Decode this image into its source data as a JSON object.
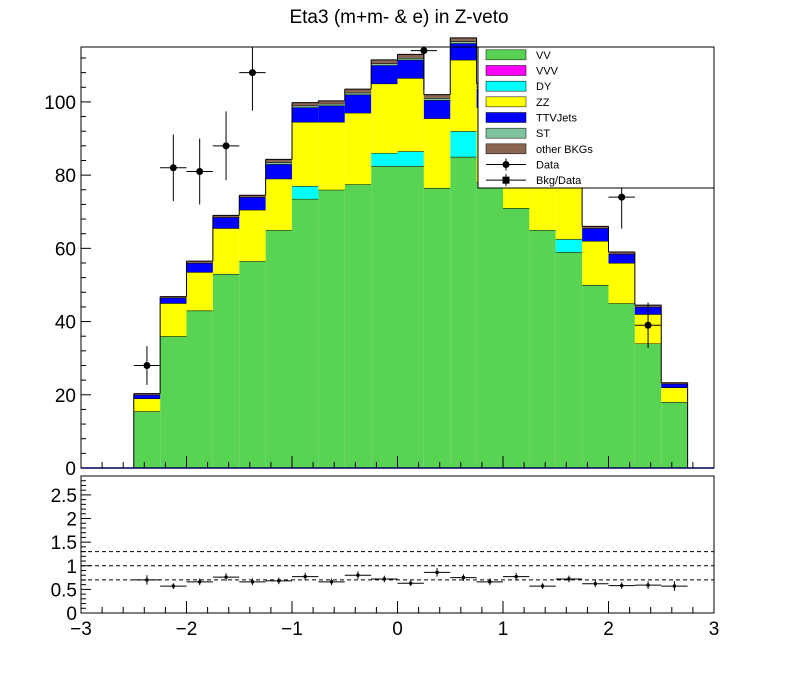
{
  "title": "Eta3 (m+m- & e) in Z-veto",
  "colors": {
    "VV": "#59d354",
    "VVV": "#ff00ff",
    "DY": "#00ffff",
    "ZZ": "#ffff00",
    "TTVJets": "#0000ff",
    "ST": "#7ec49c",
    "other BKGs": "#8b6655",
    "outline": "#000000",
    "axis": "#000000"
  },
  "legend": [
    {
      "label": "VV",
      "style": "fill",
      "color": "#59d354"
    },
    {
      "label": "VVV",
      "style": "fill",
      "color": "#ff00ff"
    },
    {
      "label": "DY",
      "style": "fill",
      "color": "#00ffff"
    },
    {
      "label": "ZZ",
      "style": "fill",
      "color": "#ffff00"
    },
    {
      "label": "TTVJets",
      "style": "fill",
      "color": "#0000ff"
    },
    {
      "label": "ST",
      "style": "fill",
      "color": "#7ec49c"
    },
    {
      "label": "other BKGs",
      "style": "fill",
      "color": "#8b6655"
    },
    {
      "label": "Data",
      "style": "marker-circle",
      "color": "#000000"
    },
    {
      "label": "Bkg/Data",
      "style": "marker-square",
      "color": "#000000"
    }
  ],
  "chart_data": [
    {
      "type": "bar",
      "subtype": "stacked-histogram",
      "title": "Eta3 (m+m- & e) in Z-veto",
      "xlim": [
        -3,
        3
      ],
      "ylim": [
        0,
        115
      ],
      "bin_edges": [
        -3.0,
        -2.75,
        -2.5,
        -2.25,
        -2.0,
        -1.75,
        -1.5,
        -1.25,
        -1.0,
        -0.75,
        -0.5,
        -0.25,
        0.0,
        0.25,
        0.5,
        0.75,
        1.0,
        1.25,
        1.5,
        1.75,
        2.0,
        2.25,
        2.5,
        2.75,
        3.0
      ],
      "yticks": [
        0,
        20,
        40,
        60,
        80,
        100
      ],
      "xticks": [
        -3,
        -2,
        -1,
        0,
        1,
        2,
        3
      ],
      "series": [
        {
          "name": "VV",
          "values": [
            0,
            0,
            15.5,
            36,
            43,
            53,
            56.5,
            65,
            73.5,
            76,
            77.5,
            82.5,
            82.5,
            76.5,
            85,
            78,
            71,
            65,
            59,
            50,
            45,
            34,
            18,
            0
          ]
        },
        {
          "name": "DY",
          "values": [
            0,
            0,
            0,
            0,
            0,
            0,
            0,
            0,
            3.5,
            0,
            0,
            3.5,
            4,
            0,
            7,
            0,
            0,
            0,
            3.5,
            0,
            0,
            0,
            0,
            0
          ]
        },
        {
          "name": "ZZ",
          "values": [
            0,
            0,
            3.5,
            9,
            10.5,
            12.5,
            14,
            14,
            17.5,
            18.5,
            19.5,
            19,
            20,
            19,
            19.5,
            20.5,
            20.5,
            18.5,
            14,
            12,
            11,
            8,
            4,
            0
          ]
        },
        {
          "name": "TTVJets",
          "values": [
            0,
            0,
            1,
            1.5,
            2.5,
            3,
            3.5,
            4,
            4,
            4.5,
            5,
            5,
            5,
            5,
            4.5,
            5,
            5,
            4.5,
            3.5,
            3.5,
            2.5,
            2,
            1,
            0
          ]
        },
        {
          "name": "ST",
          "values": [
            0,
            0,
            0,
            0,
            0,
            0,
            0,
            0.5,
            0.5,
            0.5,
            0.5,
            0.5,
            0.5,
            0.5,
            0.5,
            0.5,
            0.5,
            0.5,
            0.5,
            0,
            0,
            0,
            0,
            0
          ]
        },
        {
          "name": "other BKGs",
          "values": [
            0,
            0,
            0.3,
            0.3,
            0.5,
            0.5,
            0.5,
            0.8,
            0.8,
            0.8,
            1,
            1,
            1,
            1,
            1,
            1,
            0.8,
            0.8,
            0.8,
            0.5,
            0.5,
            0.5,
            0.3,
            0
          ]
        }
      ],
      "data_points": [
        {
          "x": -2.375,
          "y": 28,
          "err": 5.3
        },
        {
          "x": -2.125,
          "y": 82,
          "err": 9.1
        },
        {
          "x": -1.875,
          "y": 81,
          "err": 9
        },
        {
          "x": -1.625,
          "y": 88,
          "err": 9.4
        },
        {
          "x": -1.375,
          "y": 108,
          "err": 10.4
        },
        {
          "x": 0.25,
          "y": 114,
          "err": 10.7
        },
        {
          "x": 2.125,
          "y": 74,
          "err": 8.6
        },
        {
          "x": 2.375,
          "y": 39,
          "err": 6.2
        }
      ]
    },
    {
      "type": "scatter",
      "subtype": "ratio-with-errors",
      "name": "Bkg/Data",
      "xlim": [
        -3,
        3
      ],
      "ylim": [
        0,
        2.9
      ],
      "yticks": [
        0,
        0.5,
        1,
        1.5,
        2,
        2.5
      ],
      "ytick_labels": [
        "0",
        "0.5",
        "1",
        "1.5",
        "2",
        "2.5"
      ],
      "xticks": [
        -3,
        -2,
        -1,
        0,
        1,
        2,
        3
      ],
      "xtick_labels": [
        "−3",
        "−2",
        "−1",
        "0",
        "1",
        "2",
        "3"
      ],
      "reference_lines": [
        0.7,
        1.0,
        1.3
      ],
      "points": [
        {
          "x": -2.375,
          "y": 0.7,
          "err": 0.1
        },
        {
          "x": -2.125,
          "y": 0.57,
          "err": 0.06
        },
        {
          "x": -1.875,
          "y": 0.66,
          "err": 0.07
        },
        {
          "x": -1.625,
          "y": 0.76,
          "err": 0.08
        },
        {
          "x": -1.375,
          "y": 0.66,
          "err": 0.07
        },
        {
          "x": -1.125,
          "y": 0.68,
          "err": 0.07
        },
        {
          "x": -0.875,
          "y": 0.77,
          "err": 0.08
        },
        {
          "x": -0.625,
          "y": 0.66,
          "err": 0.07
        },
        {
          "x": -0.375,
          "y": 0.8,
          "err": 0.08
        },
        {
          "x": -0.125,
          "y": 0.72,
          "err": 0.07
        },
        {
          "x": 0.125,
          "y": 0.63,
          "err": 0.06
        },
        {
          "x": 0.375,
          "y": 0.86,
          "err": 0.09
        },
        {
          "x": 0.625,
          "y": 0.75,
          "err": 0.07
        },
        {
          "x": 0.875,
          "y": 0.66,
          "err": 0.07
        },
        {
          "x": 1.125,
          "y": 0.77,
          "err": 0.08
        },
        {
          "x": 1.375,
          "y": 0.57,
          "err": 0.06
        },
        {
          "x": 1.625,
          "y": 0.72,
          "err": 0.07
        },
        {
          "x": 1.875,
          "y": 0.62,
          "err": 0.07
        },
        {
          "x": 2.125,
          "y": 0.58,
          "err": 0.07
        },
        {
          "x": 2.375,
          "y": 0.59,
          "err": 0.08
        },
        {
          "x": 2.625,
          "y": 0.57,
          "err": 0.1
        }
      ]
    }
  ]
}
